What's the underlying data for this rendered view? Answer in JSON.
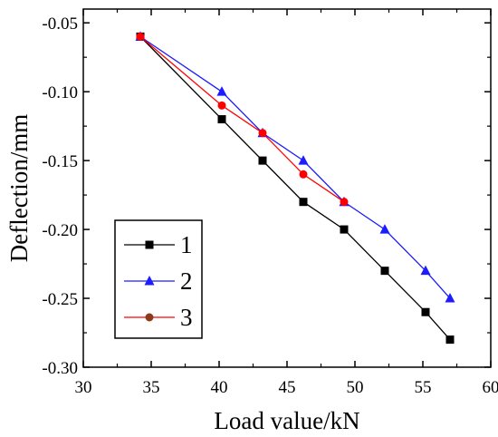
{
  "chart_data": {
    "type": "line",
    "xlabel": "Load value/kN",
    "ylabel": "Deflection/mm",
    "xlim": [
      30,
      60
    ],
    "ylim": [
      -0.3,
      -0.04
    ],
    "x_ticks": [
      30,
      35,
      40,
      45,
      50,
      55,
      60
    ],
    "y_ticks": [
      -0.3,
      -0.25,
      -0.2,
      -0.15,
      -0.1,
      -0.05
    ],
    "x_tick_labels": [
      "30",
      "35",
      "40",
      "45",
      "50",
      "55",
      "60"
    ],
    "y_tick_labels": [
      "-0.30",
      "-0.25",
      "-0.20",
      "-0.15",
      "-0.10",
      "-0.05"
    ],
    "grid": false,
    "legend_position": "bottom-left",
    "series": [
      {
        "name": "1",
        "color": "#000000",
        "marker": "square",
        "points": [
          {
            "x": 34.2,
            "y": -0.06
          },
          {
            "x": 40.2,
            "y": -0.12
          },
          {
            "x": 43.2,
            "y": -0.15
          },
          {
            "x": 46.2,
            "y": -0.18
          },
          {
            "x": 49.2,
            "y": -0.2
          },
          {
            "x": 52.2,
            "y": -0.23
          },
          {
            "x": 55.2,
            "y": -0.26
          },
          {
            "x": 57.0,
            "y": -0.28
          }
        ]
      },
      {
        "name": "2",
        "color": "#1c1cff",
        "marker": "triangle",
        "points": [
          {
            "x": 34.2,
            "y": -0.06
          },
          {
            "x": 40.2,
            "y": -0.1
          },
          {
            "x": 43.2,
            "y": -0.13
          },
          {
            "x": 46.2,
            "y": -0.15
          },
          {
            "x": 49.2,
            "y": -0.18
          },
          {
            "x": 52.2,
            "y": -0.2
          },
          {
            "x": 55.2,
            "y": -0.23
          },
          {
            "x": 57.0,
            "y": -0.25
          }
        ]
      },
      {
        "name": "3",
        "color": "#ff0000",
        "marker": "circle",
        "legend_marker_color": "#8b3a1a",
        "points": [
          {
            "x": 34.2,
            "y": -0.06
          },
          {
            "x": 40.2,
            "y": -0.11
          },
          {
            "x": 43.2,
            "y": -0.13
          },
          {
            "x": 46.2,
            "y": -0.16
          },
          {
            "x": 49.2,
            "y": -0.18
          }
        ]
      }
    ]
  }
}
